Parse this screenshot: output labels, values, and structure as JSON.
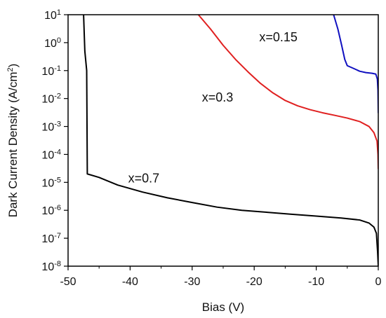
{
  "chart_data": {
    "type": "line",
    "xlabel": "Bias (V)",
    "ylabel_main": "Dark Current Density (A/cm",
    "ylabel_sup": "2",
    "ylabel_close": ")",
    "xlim": [
      -50,
      0
    ],
    "ylim": [
      1e-08,
      10
    ],
    "y_scale": "log",
    "grid": false,
    "legend": "none",
    "x_ticks": [
      {
        "value": -50,
        "label": "-50"
      },
      {
        "value": -40,
        "label": "-40"
      },
      {
        "value": -30,
        "label": "-30"
      },
      {
        "value": -20,
        "label": "-20"
      },
      {
        "value": -10,
        "label": "-10"
      },
      {
        "value": 0,
        "label": "0"
      }
    ],
    "y_ticks": [
      {
        "value": 1e-08,
        "base": "10",
        "exp": "-8"
      },
      {
        "value": 1e-07,
        "base": "10",
        "exp": "-7"
      },
      {
        "value": 1e-06,
        "base": "10",
        "exp": "-6"
      },
      {
        "value": 1e-05,
        "base": "10",
        "exp": "-5"
      },
      {
        "value": 0.0001,
        "base": "10",
        "exp": "-4"
      },
      {
        "value": 0.001,
        "base": "10",
        "exp": "-3"
      },
      {
        "value": 0.01,
        "base": "10",
        "exp": "-2"
      },
      {
        "value": 0.1,
        "base": "10",
        "exp": "-1"
      },
      {
        "value": 1,
        "base": "10",
        "exp": "0"
      },
      {
        "value": 10,
        "base": "10",
        "exp": "1"
      }
    ],
    "series": [
      {
        "color": "#000000",
        "points": [
          [
            -47.5,
            10
          ],
          [
            -47.3,
            0.5
          ],
          [
            -47.0,
            0.1
          ],
          [
            -46.9,
            2e-05
          ],
          [
            -45,
            1.5e-05
          ],
          [
            -42,
            8e-06
          ],
          [
            -38,
            4.5e-06
          ],
          [
            -34,
            2.8e-06
          ],
          [
            -30,
            1.9e-06
          ],
          [
            -26,
            1.3e-06
          ],
          [
            -22,
            1e-06
          ],
          [
            -18,
            8.5e-07
          ],
          [
            -14,
            7.2e-07
          ],
          [
            -10,
            6.2e-07
          ],
          [
            -6,
            5.3e-07
          ],
          [
            -3,
            4.5e-07
          ],
          [
            -1.5,
            3.5e-07
          ],
          [
            -0.7,
            2.5e-07
          ],
          [
            -0.3,
            1.5e-07
          ],
          [
            -0.1,
            3e-08
          ],
          [
            0,
            1e-08
          ]
        ]
      },
      {
        "color": "#e02020",
        "points": [
          [
            -29,
            10
          ],
          [
            -27,
            3
          ],
          [
            -25,
            0.8
          ],
          [
            -23,
            0.25
          ],
          [
            -21,
            0.09
          ],
          [
            -19,
            0.035
          ],
          [
            -17,
            0.016
          ],
          [
            -15,
            0.0085
          ],
          [
            -13,
            0.0055
          ],
          [
            -11,
            0.004
          ],
          [
            -9,
            0.0031
          ],
          [
            -7,
            0.0025
          ],
          [
            -5,
            0.002
          ],
          [
            -3,
            0.0015
          ],
          [
            -1.5,
            0.001
          ],
          [
            -0.7,
            0.0006
          ],
          [
            -0.2,
            0.0003
          ],
          [
            -0.05,
            0.0001
          ],
          [
            0,
            3e-05
          ]
        ]
      },
      {
        "color": "#1010c0",
        "points": [
          [
            -7.2,
            10
          ],
          [
            -6.5,
            3
          ],
          [
            -5.9,
            0.8
          ],
          [
            -5.4,
            0.25
          ],
          [
            -5.0,
            0.15
          ],
          [
            -4.0,
            0.12
          ],
          [
            -3.0,
            0.095
          ],
          [
            -2.0,
            0.085
          ],
          [
            -1.0,
            0.08
          ],
          [
            -0.4,
            0.075
          ],
          [
            -0.15,
            0.05
          ],
          [
            -0.05,
            0.02
          ],
          [
            0,
            0.003
          ]
        ]
      }
    ],
    "annotations": [
      {
        "text": "x=0.15",
        "x": -16.1,
        "y": 1.1
      },
      {
        "text": "x=0.3",
        "x": -25.9,
        "y": 0.0077
      },
      {
        "text": "x=0.7",
        "x": -37.8,
        "y": 1e-05
      }
    ]
  }
}
